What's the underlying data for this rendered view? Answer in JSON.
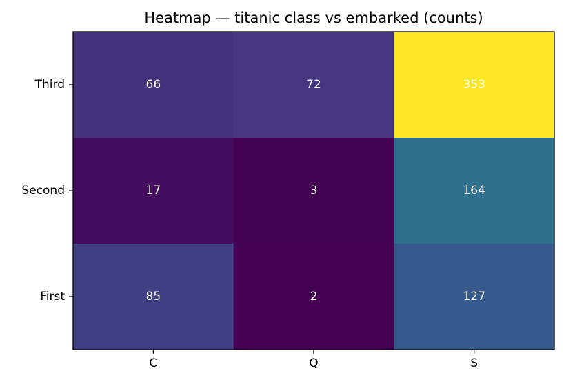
{
  "chart_data": {
    "type": "heatmap",
    "title": "Heatmap — titanic class vs embarked (counts)",
    "xlabel": "",
    "ylabel": "",
    "x_categories": [
      "C",
      "Q",
      "S"
    ],
    "y_categories": [
      "Third",
      "Second",
      "First"
    ],
    "values": [
      [
        66,
        72,
        353
      ],
      [
        17,
        3,
        164
      ],
      [
        85,
        2,
        127
      ]
    ],
    "colormap": "viridis",
    "value_range": [
      2,
      353
    ],
    "grid": false,
    "legend": "none"
  }
}
